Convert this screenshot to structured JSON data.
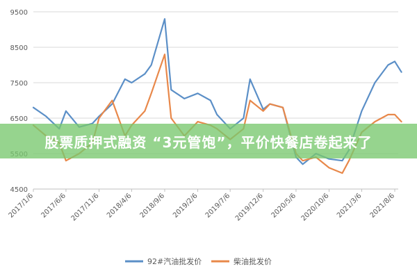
{
  "chart_data": {
    "type": "line",
    "ylim": [
      4500,
      9500
    ],
    "yticks": [
      4500,
      5500,
      6500,
      7500,
      8500,
      9500
    ],
    "xtick_labels": [
      "2017/1/6",
      "2017/6/6",
      "2017/11/6",
      "2018/4/6",
      "2018/9/6",
      "2019/2/6",
      "2019/7/6",
      "2019/12/6",
      "2020/5/6",
      "2020/10/6",
      "2021/3/6",
      "2021/8/6"
    ],
    "grid": "horizontal",
    "legend_position": "bottom",
    "x": [
      "2017/1/6",
      "2017/3/6",
      "2017/5/6",
      "2017/6/6",
      "2017/8/6",
      "2017/10/6",
      "2017/11/6",
      "2018/1/6",
      "2018/3/6",
      "2018/4/6",
      "2018/6/6",
      "2018/7/6",
      "2018/9/6",
      "2018/10/6",
      "2018/12/6",
      "2019/2/6",
      "2019/4/6",
      "2019/5/6",
      "2019/7/6",
      "2019/9/6",
      "2019/10/6",
      "2019/12/6",
      "2020/1/6",
      "2020/3/6",
      "2020/5/6",
      "2020/6/6",
      "2020/8/6",
      "2020/10/6",
      "2020/12/6",
      "2021/1/6",
      "2021/3/6",
      "2021/5/6",
      "2021/7/6",
      "2021/8/6",
      "2021/9/6"
    ],
    "series": [
      {
        "name": "92#汽油批发价",
        "color": "#5b8fc7",
        "values": [
          6800,
          6550,
          6200,
          6700,
          6250,
          6350,
          6550,
          6900,
          7600,
          7500,
          7750,
          8000,
          9300,
          7300,
          7050,
          7200,
          7000,
          6600,
          6200,
          6500,
          7600,
          6750,
          6900,
          6800,
          5400,
          5200,
          5500,
          5350,
          5300,
          5600,
          6700,
          7500,
          8000,
          8100,
          7800
        ]
      },
      {
        "name": "柴油批发价",
        "color": "#e8884a",
        "values": [
          6300,
          6000,
          5800,
          5300,
          5500,
          5800,
          6500,
          7000,
          6000,
          6300,
          6700,
          7200,
          8300,
          6500,
          6000,
          6400,
          6300,
          6200,
          5900,
          6200,
          7000,
          6700,
          6900,
          6800,
          5500,
          5300,
          5400,
          5100,
          4950,
          5300,
          6100,
          6400,
          6600,
          6600,
          6400
        ]
      }
    ]
  },
  "banner": {
    "text": "股票质押式融资 “3元管饱”，平价快餐店卷起来了"
  }
}
